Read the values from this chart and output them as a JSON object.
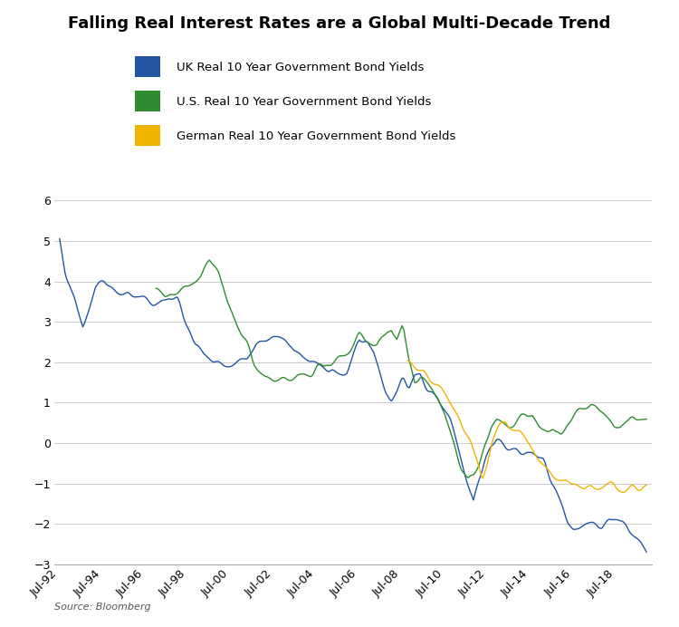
{
  "title": "Falling Real Interest Rates are a Global Multi-Decade Trend",
  "source": "Source: Bloomberg",
  "legend": [
    "UK Real 10 Year Government Bond Yields",
    "U.S. Real 10 Year Government Bond Yields",
    "German Real 10 Year Government Bond Yields"
  ],
  "colors": {
    "uk": "#2255a4",
    "us": "#2e8b30",
    "german": "#f0b400"
  },
  "ylim": [
    -3,
    6
  ],
  "yticks": [
    -3,
    -2,
    -1,
    0,
    1,
    2,
    3,
    4,
    5,
    6
  ],
  "xtick_labels": [
    "Jul-92",
    "Jul-94",
    "Jul-96",
    "Jul-98",
    "Jul-00",
    "Jul-02",
    "Jul-04",
    "Jul-06",
    "Jul-08",
    "Jul-10",
    "Jul-12",
    "Jul-14",
    "Jul-16",
    "Jul-18"
  ],
  "background_color": "#ffffff",
  "grid_color": "#cccccc",
  "linewidth": 1.0
}
